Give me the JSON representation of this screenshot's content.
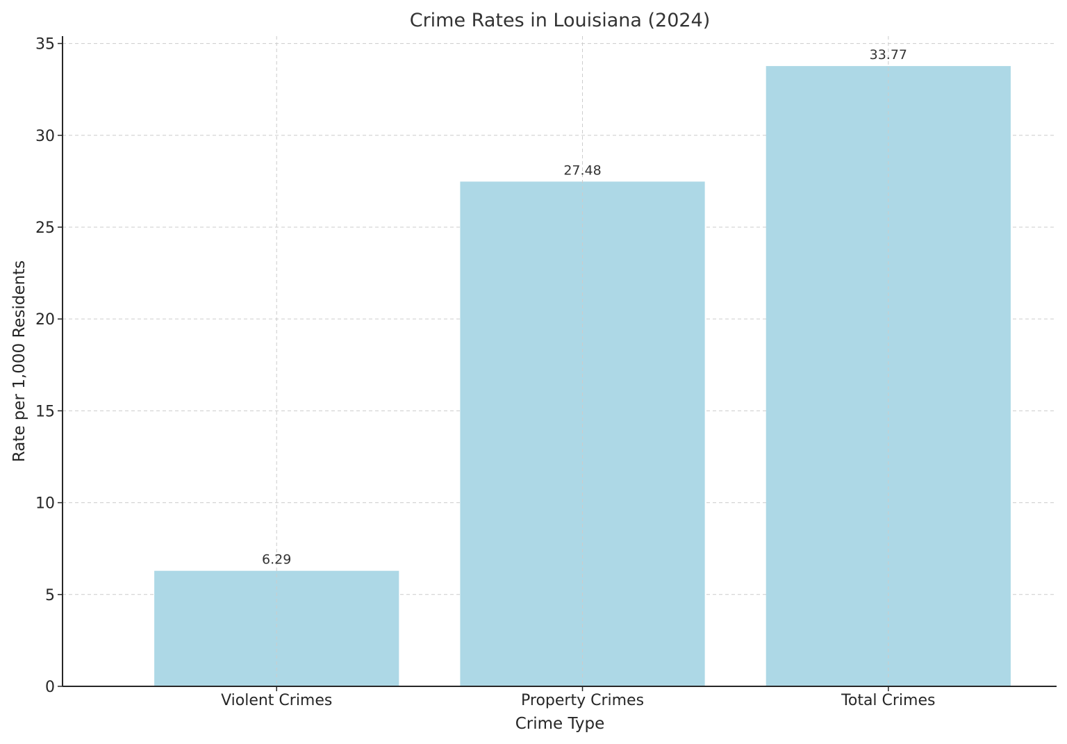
{
  "chart_data": {
    "type": "bar",
    "title": "Crime Rates in Louisiana (2024)",
    "xlabel": "Crime Type",
    "ylabel": "Rate per 1,000 Residents",
    "categories": [
      "Violent Crimes",
      "Property Crimes",
      "Total Crimes"
    ],
    "values": [
      6.29,
      27.48,
      33.77
    ],
    "value_labels": [
      "6.29",
      "27.48",
      "33.77"
    ],
    "y_ticks": [
      0,
      5,
      10,
      15,
      20,
      25,
      30,
      35
    ],
    "ylim": [
      0,
      35.4
    ],
    "grid": true,
    "bar_color": "#add8e6"
  }
}
